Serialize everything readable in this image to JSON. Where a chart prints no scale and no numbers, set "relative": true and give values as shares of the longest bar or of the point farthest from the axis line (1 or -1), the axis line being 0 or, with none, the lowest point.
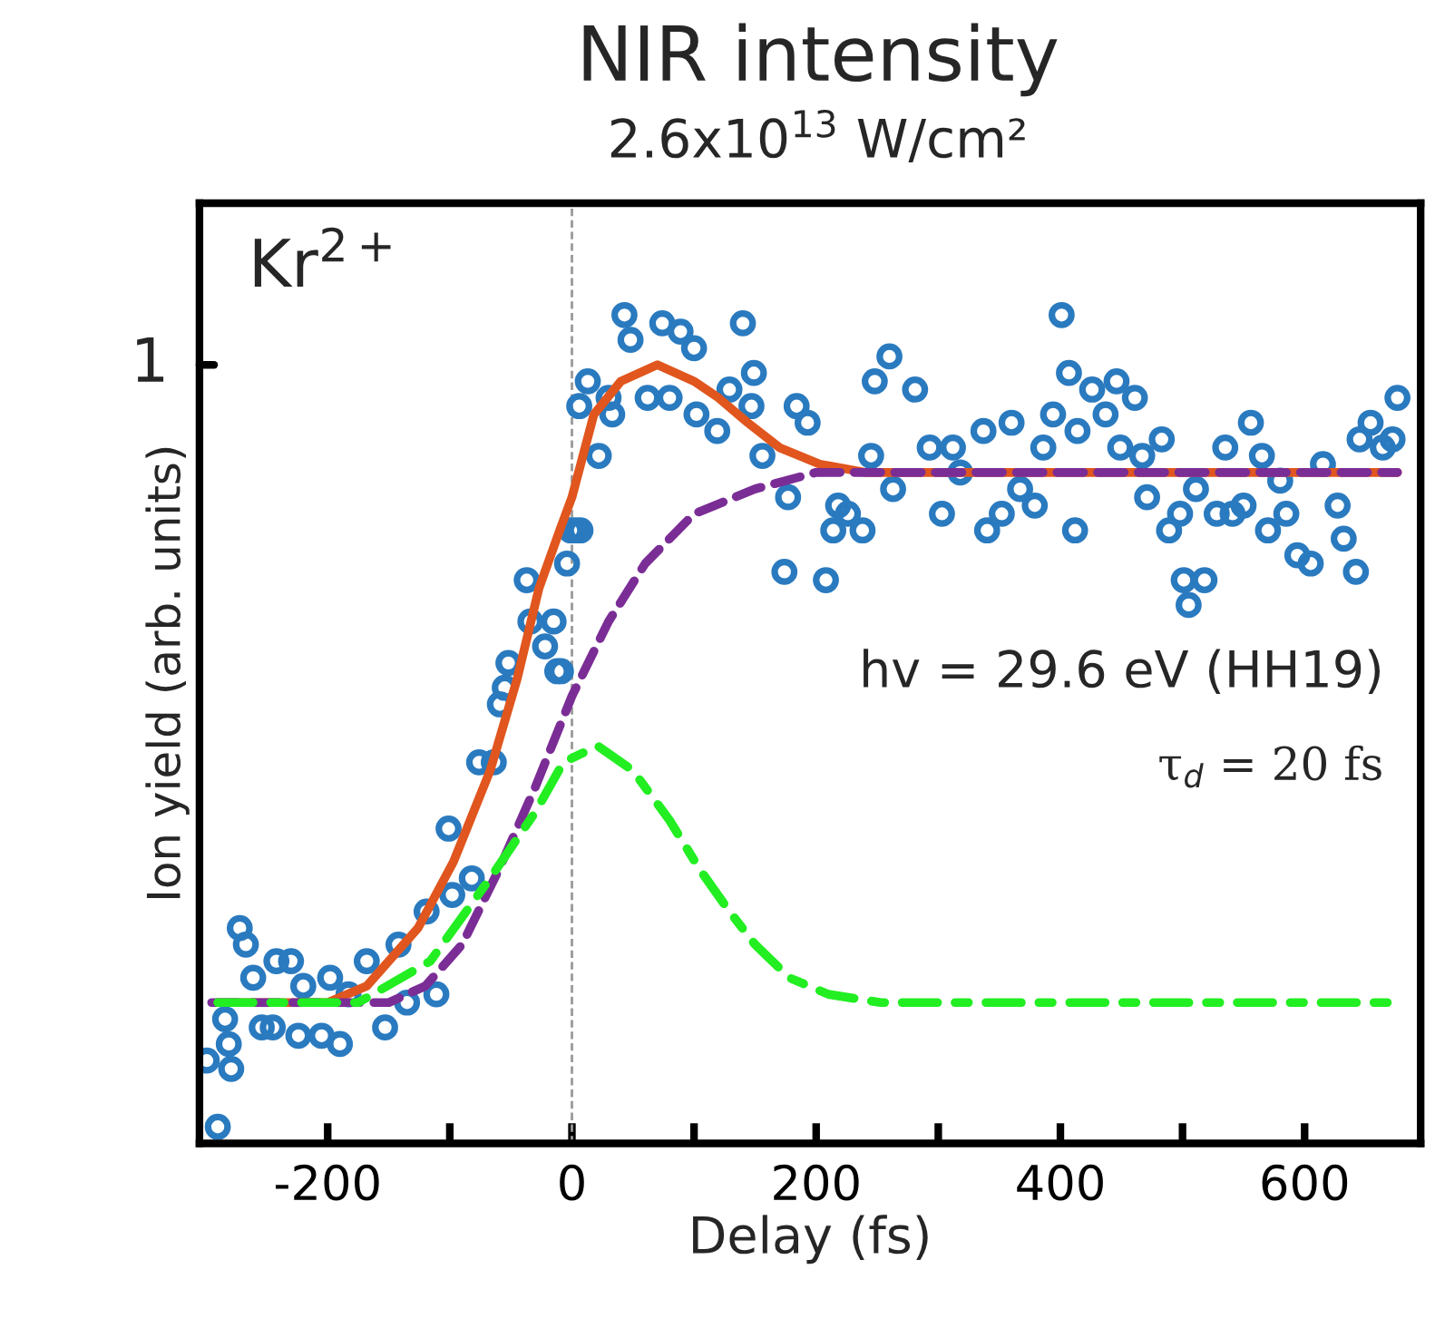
{
  "chart_data": {
    "type": "scatter",
    "title": "NIR intensity",
    "subtitle": "2.6x10$^{13}$ W/cm²",
    "xlabel": "Delay (fs)",
    "ylabel": "Ion yield (arb. units)",
    "relative": true,
    "annotations": [
      "Kr$^{2+}$",
      "hv = 29.6 eV (HH19)",
      "τ$_{d}$ = 20 fs",
      "1"
    ],
    "xlim": [
      -305,
      695
    ],
    "xticks": [
      -200,
      {
        "value": -100,
        "label": null
      },
      0,
      {
        "value": 100,
        "label": null
      },
      200,
      {
        "value": 300,
        "label": null
      },
      400,
      {
        "value": 500,
        "label": null
      },
      600
    ],
    "grid": false,
    "legend": false,
    "ref_lines": [
      {
        "axis": "x",
        "value": 0,
        "color": "#999999",
        "line_style": "dashed"
      }
    ],
    "series": [
      {
        "marker": "circle",
        "color": "#2a7abf",
        "x": [
          -290,
          -299,
          -279,
          -281,
          -284,
          -272,
          -267,
          -261,
          -254,
          -242,
          -230,
          -245,
          -224,
          -220,
          -205,
          -190,
          -198,
          -183,
          -168,
          -153,
          -135,
          -142,
          -119,
          -111,
          -101,
          -98,
          -82,
          -76,
          -64,
          -59,
          -52,
          -55,
          -37,
          -34,
          -22,
          -15,
          -12,
          -4,
          3,
          -1,
          13,
          6,
          22,
          7,
          -9,
          33,
          30,
          43,
          48,
          74,
          62,
          80,
          89,
          100,
          102,
          119,
          129,
          140,
          149,
          147,
          156,
          177,
          184,
          193,
          174,
          208,
          214,
          226,
          238,
          218,
          245,
          263,
          248,
          260,
          281,
          293,
          303,
          318,
          312,
          337,
          340,
          352,
          360,
          367,
          379,
          386,
          394,
          401,
          407,
          412,
          414,
          426,
          437,
          446,
          461,
          449,
          467,
          471,
          483,
          489,
          498,
          501,
          505,
          518,
          511,
          528,
          535,
          541,
          550,
          556,
          565,
          570,
          580,
          585,
          594,
          605,
          615,
          627,
          632,
          642,
          645,
          654,
          664,
          672,
          676
        ],
        "values": [
          0.02,
          0.1,
          0.09,
          0.12,
          0.15,
          0.26,
          0.24,
          0.2,
          0.14,
          0.22,
          0.22,
          0.14,
          0.13,
          0.19,
          0.13,
          0.12,
          0.2,
          0.18,
          0.22,
          0.14,
          0.17,
          0.24,
          0.28,
          0.18,
          0.38,
          0.3,
          0.32,
          0.46,
          0.46,
          0.53,
          0.58,
          0.55,
          0.68,
          0.63,
          0.6,
          0.63,
          0.57,
          0.7,
          0.74,
          0.74,
          0.92,
          0.89,
          0.83,
          0.74,
          0.57,
          0.88,
          0.9,
          1,
          0.97,
          0.99,
          0.9,
          0.9,
          0.98,
          0.96,
          0.88,
          0.86,
          0.91,
          0.99,
          0.93,
          0.89,
          0.83,
          0.78,
          0.89,
          0.87,
          0.69,
          0.68,
          0.74,
          0.76,
          0.74,
          0.77,
          0.83,
          0.79,
          0.92,
          0.95,
          0.91,
          0.84,
          0.76,
          0.81,
          0.84,
          0.86,
          0.74,
          0.76,
          0.87,
          0.79,
          0.77,
          0.84,
          0.88,
          1,
          0.93,
          0.74,
          0.86,
          0.91,
          0.88,
          0.92,
          0.9,
          0.84,
          0.83,
          0.78,
          0.85,
          0.74,
          0.76,
          0.68,
          0.65,
          0.68,
          0.79,
          0.76,
          0.84,
          0.76,
          0.77,
          0.87,
          0.83,
          0.74,
          0.8,
          0.76,
          0.71,
          0.7,
          0.82,
          0.77,
          0.73,
          0.69,
          0.85,
          0.87,
          0.84,
          0.85,
          0.9
        ]
      },
      {
        "type": "line",
        "line_style": "solid",
        "color": "#e0561e",
        "x": [
          -290,
          -200,
          -168,
          -126,
          -97,
          -67,
          -45,
          -27,
          -10,
          0,
          18,
          40,
          70,
          100,
          120,
          144,
          170,
          203,
          240,
          300,
          676
        ],
        "values": [
          0.17,
          0.17,
          0.19,
          0.26,
          0.34,
          0.45,
          0.56,
          0.67,
          0.74,
          0.78,
          0.88,
          0.92,
          0.94,
          0.92,
          0.9,
          0.87,
          0.84,
          0.82,
          0.81,
          0.81,
          0.81
        ]
      },
      {
        "type": "line",
        "line_style": "dashed",
        "color": "#7b2d96",
        "x": [
          -295,
          -150,
          -120,
          -90,
          -60,
          -30,
          0,
          30,
          60,
          100,
          150,
          200,
          676
        ],
        "values": [
          0.17,
          0.17,
          0.19,
          0.24,
          0.33,
          0.43,
          0.54,
          0.63,
          0.7,
          0.76,
          0.79,
          0.81,
          0.81
        ]
      },
      {
        "type": "line",
        "line_style": "dashdot",
        "color": "#22ee22",
        "x": [
          -290,
          -175,
          -116,
          -67,
          -30,
          -7,
          21,
          50,
          80,
          105,
          129,
          150,
          178,
          210,
          253,
          676
        ],
        "values": [
          0.17,
          0.17,
          0.22,
          0.32,
          0.4,
          0.46,
          0.48,
          0.45,
          0.39,
          0.33,
          0.28,
          0.24,
          0.2,
          0.18,
          0.17,
          0.17
        ]
      }
    ]
  }
}
